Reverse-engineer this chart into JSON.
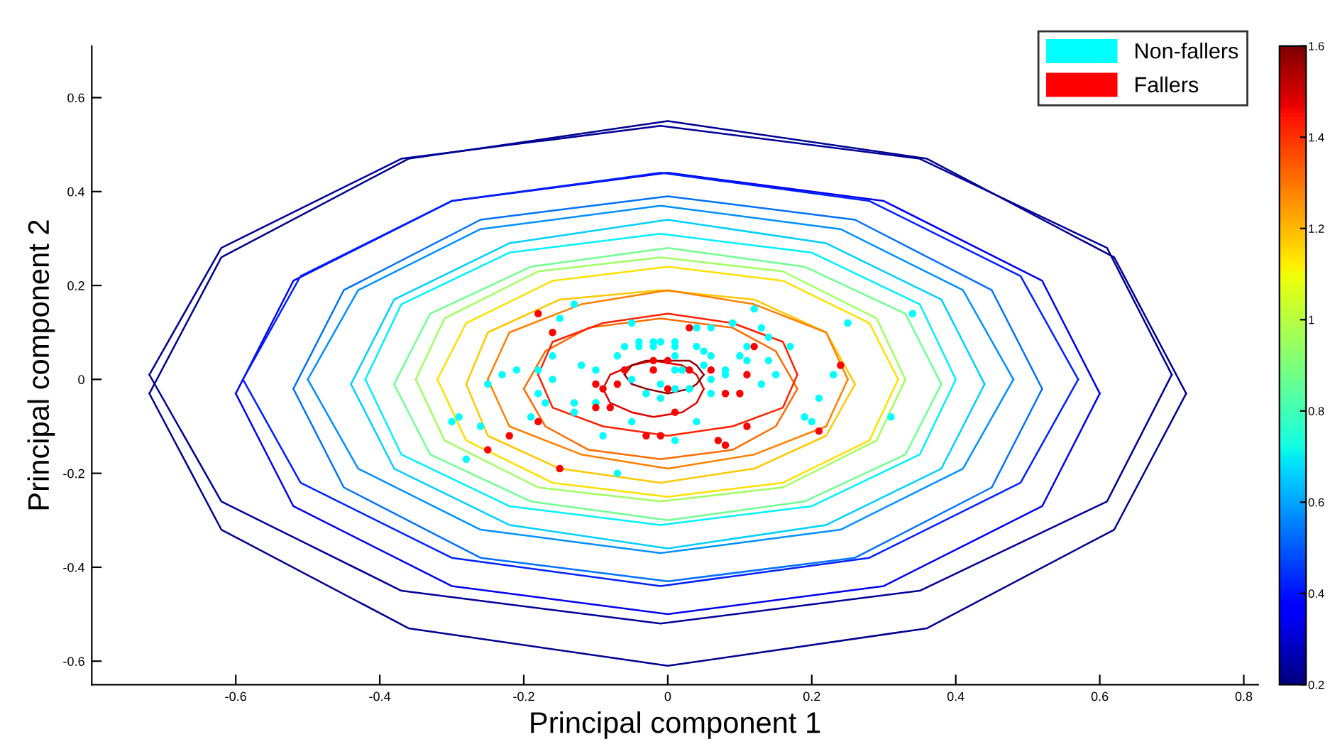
{
  "chart_data": {
    "type": "scatter",
    "xlabel": "Principal component 1",
    "ylabel": "Principal component 2",
    "xlim": [
      -0.8,
      0.82
    ],
    "ylim": [
      -0.65,
      0.71
    ],
    "xticks": [
      -0.6,
      -0.4,
      -0.2,
      0,
      0.2,
      0.4,
      0.6,
      0.8
    ],
    "yticks": [
      -0.6,
      -0.4,
      -0.2,
      0,
      0.2,
      0.4,
      0.6
    ],
    "clim": [
      0.2,
      1.6
    ],
    "cticks": [
      0.2,
      0.4,
      0.6,
      0.8,
      1,
      1.2,
      1.4,
      1.6
    ],
    "legend": "top right",
    "series": [
      {
        "type": "line",
        "color": "#000090",
        "x": [
          -0.72,
          -0.62,
          -0.36,
          0,
          0.36,
          0.62,
          0.72
        ],
        "values": [
          -0.03,
          0.26,
          0.47,
          0.55,
          0.47,
          0.26,
          -0.03
        ]
      },
      {
        "type": "line",
        "color": "#000090",
        "x": [
          -0.72,
          -0.62,
          -0.36,
          0,
          0.36,
          0.62,
          0.72
        ],
        "values": [
          -0.03,
          -0.32,
          -0.53,
          -0.61,
          -0.53,
          -0.32,
          -0.03
        ]
      },
      {
        "type": "line",
        "color": "#000098",
        "x": [
          -0.72,
          -0.62,
          -0.37,
          -0.01,
          0.35,
          0.61,
          0.7
        ],
        "values": [
          0.01,
          0.28,
          0.47,
          0.54,
          0.47,
          0.28,
          0.01
        ]
      },
      {
        "type": "line",
        "color": "#000098",
        "x": [
          -0.72,
          -0.62,
          -0.37,
          -0.01,
          0.35,
          0.61,
          0.7
        ],
        "values": [
          0.01,
          -0.26,
          -0.45,
          -0.52,
          -0.45,
          -0.26,
          0.01
        ]
      },
      {
        "type": "line",
        "color": "#0000f0",
        "x": [
          -0.6,
          -0.52,
          -0.3,
          0,
          0.3,
          0.52,
          0.6
        ],
        "values": [
          -0.03,
          0.21,
          0.38,
          0.44,
          0.38,
          0.21,
          -0.03
        ]
      },
      {
        "type": "line",
        "color": "#0000f0",
        "x": [
          -0.6,
          -0.52,
          -0.3,
          0,
          0.3,
          0.52,
          0.6
        ],
        "values": [
          -0.03,
          -0.27,
          -0.44,
          -0.5,
          -0.44,
          -0.27,
          -0.03
        ]
      },
      {
        "type": "line",
        "color": "#0020ff",
        "x": [
          -0.59,
          -0.51,
          -0.3,
          -0.01,
          0.28,
          0.49,
          0.57
        ],
        "values": [
          0,
          0.22,
          0.38,
          0.44,
          0.38,
          0.22,
          0
        ]
      },
      {
        "type": "line",
        "color": "#0020ff",
        "x": [
          -0.59,
          -0.51,
          -0.3,
          -0.01,
          0.28,
          0.49,
          0.57
        ],
        "values": [
          0,
          -0.22,
          -0.38,
          -0.44,
          -0.38,
          -0.22,
          0
        ]
      },
      {
        "type": "line",
        "color": "#0070ff",
        "x": [
          -0.52,
          -0.45,
          -0.26,
          0,
          0.26,
          0.45,
          0.52
        ],
        "values": [
          -0.02,
          0.19,
          0.34,
          0.39,
          0.34,
          0.19,
          -0.02
        ]
      },
      {
        "type": "line",
        "color": "#0070ff",
        "x": [
          -0.52,
          -0.45,
          -0.26,
          0,
          0.26,
          0.45,
          0.52
        ],
        "values": [
          -0.02,
          -0.23,
          -0.38,
          -0.43,
          -0.38,
          -0.23,
          -0.02
        ]
      },
      {
        "type": "line",
        "color": "#0090ff",
        "x": [
          -0.5,
          -0.43,
          -0.26,
          -0.01,
          0.24,
          0.41,
          0.48
        ],
        "values": [
          0,
          0.19,
          0.32,
          0.37,
          0.32,
          0.19,
          0
        ]
      },
      {
        "type": "line",
        "color": "#0090ff",
        "x": [
          -0.5,
          -0.43,
          -0.26,
          -0.01,
          0.24,
          0.41,
          0.48
        ],
        "values": [
          0,
          -0.19,
          -0.32,
          -0.37,
          -0.32,
          -0.19,
          0
        ]
      },
      {
        "type": "line",
        "color": "#00d0ff",
        "x": [
          -0.44,
          -0.38,
          -0.22,
          0,
          0.22,
          0.38,
          0.44
        ],
        "values": [
          -0.01,
          0.17,
          0.29,
          0.34,
          0.29,
          0.17,
          -0.01
        ]
      },
      {
        "type": "line",
        "color": "#00d0ff",
        "x": [
          -0.44,
          -0.38,
          -0.22,
          0,
          0.22,
          0.38,
          0.44
        ],
        "values": [
          -0.01,
          -0.19,
          -0.31,
          -0.36,
          -0.31,
          -0.19,
          -0.01
        ]
      },
      {
        "type": "line",
        "color": "#00f0ff",
        "x": [
          -0.42,
          -0.37,
          -0.22,
          -0.01,
          0.2,
          0.35,
          0.4
        ],
        "values": [
          0,
          0.16,
          0.27,
          0.31,
          0.27,
          0.16,
          0
        ]
      },
      {
        "type": "line",
        "color": "#00f0ff",
        "x": [
          -0.42,
          -0.37,
          -0.22,
          -0.01,
          0.2,
          0.35,
          0.4
        ],
        "values": [
          0,
          -0.16,
          -0.27,
          -0.31,
          -0.27,
          -0.16,
          0
        ]
      },
      {
        "type": "line",
        "color": "#70ff90",
        "x": [
          -0.38,
          -0.33,
          -0.19,
          0,
          0.19,
          0.33,
          0.38
        ],
        "values": [
          -0.01,
          0.14,
          0.24,
          0.28,
          0.24,
          0.14,
          -0.01
        ]
      },
      {
        "type": "line",
        "color": "#70ff90",
        "x": [
          -0.38,
          -0.33,
          -0.19,
          0,
          0.19,
          0.33,
          0.38
        ],
        "values": [
          -0.01,
          -0.16,
          -0.26,
          -0.3,
          -0.26,
          -0.16,
          -0.01
        ]
      },
      {
        "type": "line",
        "color": "#a0ff60",
        "x": [
          -0.35,
          -0.31,
          -0.18,
          -0.01,
          0.16,
          0.29,
          0.33
        ],
        "values": [
          0,
          0.13,
          0.23,
          0.26,
          0.23,
          0.13,
          0
        ]
      },
      {
        "type": "line",
        "color": "#a0ff60",
        "x": [
          -0.35,
          -0.31,
          -0.18,
          -0.01,
          0.16,
          0.29,
          0.33
        ],
        "values": [
          0,
          -0.13,
          -0.23,
          -0.26,
          -0.23,
          -0.13,
          0
        ]
      },
      {
        "type": "line",
        "color": "#ffe000",
        "x": [
          -0.32,
          -0.28,
          -0.16,
          0,
          0.16,
          0.28,
          0.32
        ],
        "values": [
          0,
          0.12,
          0.21,
          0.24,
          0.21,
          0.12,
          0
        ]
      },
      {
        "type": "line",
        "color": "#ffe000",
        "x": [
          -0.32,
          -0.28,
          -0.16,
          0,
          0.16,
          0.28,
          0.32
        ],
        "values": [
          0,
          -0.13,
          -0.22,
          -0.25,
          -0.22,
          -0.13,
          0
        ]
      },
      {
        "type": "line",
        "color": "#ffc800",
        "x": [
          -0.28,
          -0.25,
          -0.15,
          -0.01,
          0.12,
          0.22,
          0.26
        ],
        "values": [
          -0.01,
          0.1,
          0.17,
          0.19,
          0.17,
          0.1,
          -0.01
        ]
      },
      {
        "type": "line",
        "color": "#ffc800",
        "x": [
          -0.28,
          -0.25,
          -0.15,
          -0.01,
          0.12,
          0.22,
          0.26
        ],
        "values": [
          -0.01,
          -0.12,
          -0.19,
          -0.22,
          -0.19,
          -0.12,
          -0.01
        ]
      },
      {
        "type": "line",
        "color": "#ff8000",
        "x": [
          -0.25,
          -0.22,
          -0.12,
          0,
          0.12,
          0.22,
          0.25
        ],
        "values": [
          0,
          0.1,
          0.16,
          0.19,
          0.16,
          0.1,
          0
        ]
      },
      {
        "type": "line",
        "color": "#ff8000",
        "x": [
          -0.25,
          -0.22,
          -0.12,
          0,
          0.12,
          0.22,
          0.25
        ],
        "values": [
          0,
          -0.1,
          -0.16,
          -0.19,
          -0.16,
          -0.1,
          0
        ]
      },
      {
        "type": "line",
        "color": "#ff6a00",
        "x": [
          -0.2,
          -0.17,
          -0.11,
          -0.01,
          0.09,
          0.15,
          0.18
        ],
        "values": [
          -0.02,
          0.06,
          0.11,
          0.13,
          0.11,
          0.06,
          -0.02
        ]
      },
      {
        "type": "line",
        "color": "#ff6a00",
        "x": [
          -0.2,
          -0.17,
          -0.11,
          -0.01,
          0.09,
          0.15,
          0.18
        ],
        "values": [
          -0.02,
          -0.1,
          -0.15,
          -0.17,
          -0.15,
          -0.1,
          -0.02
        ]
      },
      {
        "type": "line",
        "color": "#ff2000",
        "x": [
          -0.18,
          -0.16,
          -0.09,
          0,
          0.09,
          0.16,
          0.18
        ],
        "values": [
          0.01,
          0.08,
          0.12,
          0.14,
          0.12,
          0.08,
          0.01
        ]
      },
      {
        "type": "line",
        "color": "#ff2000",
        "x": [
          -0.18,
          -0.16,
          -0.09,
          0,
          0.09,
          0.16,
          0.18
        ],
        "values": [
          0.01,
          -0.06,
          -0.1,
          -0.12,
          -0.1,
          -0.06,
          0.01
        ]
      },
      {
        "type": "line",
        "color": "#e00000",
        "x": [
          -0.09,
          -0.08,
          -0.05,
          -0.02,
          0.02,
          0.04,
          0.05
        ],
        "values": [
          -0.02,
          0.01,
          0.03,
          0.04,
          0.03,
          0.01,
          -0.02
        ]
      },
      {
        "type": "line",
        "color": "#e00000",
        "x": [
          -0.09,
          -0.08,
          -0.05,
          -0.02,
          0.02,
          0.04,
          0.05
        ],
        "values": [
          -0.02,
          -0.05,
          -0.07,
          -0.08,
          -0.07,
          -0.05,
          -0.02
        ]
      },
      {
        "type": "line",
        "color": "#900000",
        "x": [
          -0.06,
          -0.05,
          -0.03,
          0,
          0.03,
          0.04,
          0.05
        ],
        "values": [
          0.01,
          0.03,
          0.04,
          0.04,
          0.04,
          0.03,
          0.01
        ]
      },
      {
        "type": "line",
        "color": "#900000",
        "x": [
          -0.06,
          -0.05,
          -0.03,
          0,
          0.03,
          0.04,
          0.05
        ],
        "values": [
          0.01,
          -0.01,
          -0.02,
          -0.03,
          -0.02,
          -0.01,
          0.01
        ]
      },
      {
        "name": "Non-fallers",
        "color": "#00ffff",
        "marker": "circle",
        "x": [
          -0.13,
          -0.15,
          -0.05,
          0.12,
          0.09,
          0.25,
          0.34,
          0.04,
          0.06,
          0.13,
          0.14,
          -0.06,
          -0.04,
          -0.04,
          -0.02,
          -0.01,
          -0.02,
          0.01,
          0.01,
          0.01,
          0.04,
          0.05,
          0.06,
          0.11,
          0.17,
          -0.07,
          -0.12,
          -0.1,
          -0.16,
          -0.18,
          -0.21,
          -0.23,
          -0.25,
          -0.16,
          -0.05,
          -0.01,
          0.01,
          0.02,
          0.06,
          0.05,
          0.08,
          0.08,
          0.1,
          0.11,
          0.14,
          0.15,
          0.13,
          0.23,
          -0.03,
          -0.01,
          0.01,
          0.03,
          0.03,
          0.06,
          -0.18,
          -0.17,
          -0.13,
          -0.13,
          -0.1,
          -0.1,
          0.21,
          -0.05,
          0.04,
          -0.19,
          -0.26,
          -0.29,
          -0.3,
          -0.28,
          -0.09,
          0.01,
          -0.07,
          0.19,
          0.2,
          0.31
        ],
        "values": [
          0.16,
          0.13,
          0.12,
          0.15,
          0.12,
          0.12,
          0.14,
          0.11,
          0.11,
          0.11,
          0.09,
          0.07,
          0.08,
          0.07,
          0.08,
          0.08,
          0.07,
          0.08,
          0.07,
          0.05,
          0.07,
          0.06,
          0.05,
          0.07,
          0.07,
          0.05,
          0.03,
          0.02,
          0.05,
          0.02,
          0.02,
          0.01,
          -0.01,
          0,
          0,
          -0.01,
          0.02,
          0.02,
          0,
          0.03,
          0.01,
          0.02,
          0.05,
          0.04,
          0.04,
          0.01,
          -0.01,
          0.01,
          -0.03,
          -0.04,
          -0.02,
          -0.02,
          -0.02,
          -0.03,
          -0.03,
          -0.05,
          -0.05,
          -0.07,
          -0.05,
          -0.05,
          -0.04,
          -0.09,
          -0.09,
          -0.08,
          -0.1,
          -0.08,
          -0.09,
          -0.17,
          -0.12,
          -0.13,
          -0.2,
          -0.08,
          -0.09,
          -0.08
        ]
      },
      {
        "name": "Fallers",
        "color": "#ff0000",
        "marker": "circle",
        "x": [
          -0.18,
          -0.16,
          0.03,
          0.12,
          -0.02,
          0,
          -0.02,
          0.03,
          0.06,
          0.11,
          -0.06,
          -0.07,
          -0.1,
          -0.09,
          0,
          0.08,
          0.1,
          0.01,
          -0.1,
          -0.08,
          -0.18,
          -0.22,
          -0.25,
          -0.15,
          -0.03,
          -0.01,
          0.07,
          0.08,
          0.11,
          0.21,
          0.24
        ],
        "values": [
          0.14,
          0.1,
          0.11,
          0.07,
          0.04,
          0.04,
          0.02,
          0.02,
          0.02,
          0.01,
          0.02,
          -0.01,
          -0.01,
          -0.02,
          -0.02,
          -0.03,
          -0.03,
          -0.07,
          -0.06,
          -0.06,
          -0.09,
          -0.12,
          -0.15,
          -0.19,
          -0.12,
          -0.12,
          -0.13,
          -0.14,
          -0.1,
          -0.11,
          0.03
        ]
      }
    ]
  }
}
